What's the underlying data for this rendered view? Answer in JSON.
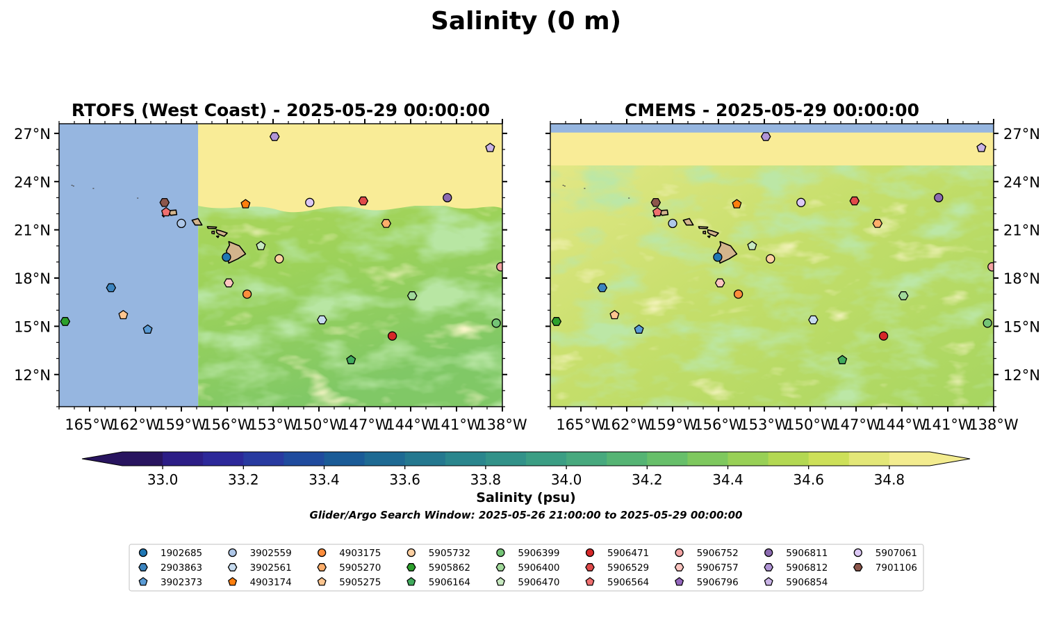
{
  "figure": {
    "title": "Salinity (0 m)",
    "search_window": "Glider/Argo Search Window: 2025-05-26 21:00:00 to 2025-05-29 00:00:00"
  },
  "colors": {
    "land_mask": "#96b6e0",
    "island_fill": "#d2b48c",
    "colorbar_stops": [
      "#28145f",
      "#2c1d86",
      "#2c2899",
      "#283aa0",
      "#1f4b9e",
      "#1a5b97",
      "#1e6a93",
      "#24788f",
      "#2a868d",
      "#329289",
      "#3b9e84",
      "#47a97e",
      "#55b474",
      "#67bf6a",
      "#7ec85e",
      "#98d056",
      "#b3d852",
      "#cde059",
      "#e3e778",
      "#f3ec8f"
    ]
  },
  "chart_data": [
    {
      "type": "heatmap",
      "panel": "left",
      "title": "RTOFS (West Coast) - 2025-05-29 00:00:00",
      "x_ticks": [
        "165°W",
        "162°W",
        "159°W",
        "156°W",
        "153°W",
        "150°W",
        "147°W",
        "144°W",
        "141°W",
        "138°W"
      ],
      "x_tick_values": [
        -165,
        -162,
        -159,
        -156,
        -153,
        -150,
        -147,
        -144,
        -141,
        -138
      ],
      "y_ticks": [
        "27°N",
        "24°N",
        "21°N",
        "18°N",
        "15°N",
        "12°N"
      ],
      "y_tick_values": [
        27,
        24,
        21,
        18,
        15,
        12
      ],
      "xlim": [
        -167,
        -138
      ],
      "ylim": [
        10,
        27.6
      ],
      "masked_west_of": -157.9,
      "field_range": [
        34.35,
        34.9
      ]
    },
    {
      "type": "heatmap",
      "panel": "right",
      "title": "CMEMS - 2025-05-29 00:00:00",
      "x_ticks": [
        "165°W",
        "162°W",
        "159°W",
        "156°W",
        "153°W",
        "150°W",
        "147°W",
        "144°W",
        "141°W",
        "138°W"
      ],
      "x_tick_values": [
        -165,
        -162,
        -159,
        -156,
        -153,
        -150,
        -147,
        -144,
        -141,
        -138
      ],
      "y_ticks": [
        "27°N",
        "24°N",
        "21°N",
        "18°N",
        "15°N",
        "12°N"
      ],
      "y_tick_values": [
        27,
        24,
        21,
        18,
        15,
        12
      ],
      "xlim": [
        -167,
        -138
      ],
      "ylim": [
        10,
        27.6
      ],
      "masked_north_of": 27.05,
      "field_range": [
        34.35,
        34.9
      ]
    }
  ],
  "colorbar": {
    "label": "Salinity (psu)",
    "min": 32.9,
    "max": 34.9,
    "step": 0.1,
    "ticks": [
      "33.0",
      "33.2",
      "33.4",
      "33.6",
      "33.8",
      "34.0",
      "34.2",
      "34.4",
      "34.6",
      "34.8"
    ],
    "tick_values": [
      33.0,
      33.2,
      33.4,
      33.6,
      33.8,
      34.0,
      34.2,
      34.4,
      34.6,
      34.8
    ]
  },
  "floats": [
    {
      "id": "1902685",
      "marker": "circle",
      "color": "#1f77b4",
      "lon": -156.05,
      "lat": 19.3
    },
    {
      "id": "2903863",
      "marker": "hexagon",
      "color": "#3b84bf",
      "lon": -163.6,
      "lat": 17.4
    },
    {
      "id": "3902373",
      "marker": "pentagon",
      "color": "#5a9bd5",
      "lon": -161.2,
      "lat": 14.8
    },
    {
      "id": "3902559",
      "marker": "circle",
      "color": "#aec7e8",
      "lon": -159.0,
      "lat": 21.4
    },
    {
      "id": "3902561",
      "marker": "hexagon",
      "color": "#c6dbef",
      "lon": -149.8,
      "lat": 15.4
    },
    {
      "id": "4903174",
      "marker": "pentagon",
      "color": "#ff7f0e",
      "lon": -154.8,
      "lat": 22.6
    },
    {
      "id": "4903175",
      "marker": "circle",
      "color": "#fd8d3c",
      "lon": -154.7,
      "lat": 17.0
    },
    {
      "id": "5905270",
      "marker": "hexagon",
      "color": "#fdae6b",
      "lon": -145.6,
      "lat": 21.4
    },
    {
      "id": "5905275",
      "marker": "pentagon",
      "color": "#fdc58f",
      "lon": -162.8,
      "lat": 15.7
    },
    {
      "id": "5905732",
      "marker": "circle",
      "color": "#fdd0a2",
      "lon": -152.6,
      "lat": 19.2
    },
    {
      "id": "5905862",
      "marker": "hexagon",
      "color": "#2ca02c",
      "lon": -166.6,
      "lat": 15.3
    },
    {
      "id": "5906164",
      "marker": "pentagon",
      "color": "#41ab5d",
      "lon": -147.9,
      "lat": 12.9
    },
    {
      "id": "5906399",
      "marker": "circle",
      "color": "#74c476",
      "lon": -138.4,
      "lat": 15.2
    },
    {
      "id": "5906400",
      "marker": "hexagon",
      "color": "#a1d99b",
      "lon": -143.9,
      "lat": 16.9
    },
    {
      "id": "5906470",
      "marker": "pentagon",
      "color": "#c7e9c0",
      "lon": -153.8,
      "lat": 20.0
    },
    {
      "id": "5906471",
      "marker": "circle",
      "color": "#d62728",
      "lon": -145.2,
      "lat": 14.4
    },
    {
      "id": "5906529",
      "marker": "hexagon",
      "color": "#e04a4a",
      "lon": -147.1,
      "lat": 22.8
    },
    {
      "id": "5906564",
      "marker": "pentagon",
      "color": "#ef6f6f",
      "lon": -160.0,
      "lat": 22.1
    },
    {
      "id": "5906752",
      "marker": "circle",
      "color": "#f4a3a3",
      "lon": -138.1,
      "lat": 18.7
    },
    {
      "id": "5906757",
      "marker": "hexagon",
      "color": "#fcc5c0",
      "lon": -155.9,
      "lat": 17.7
    },
    {
      "id": "5906796",
      "marker": "pentagon",
      "color": "#9467bd",
      "lon": -138.8,
      "lat": 26.1
    },
    {
      "id": "5906811",
      "marker": "circle",
      "color": "#8c6bb1",
      "lon": -141.6,
      "lat": 23.0
    },
    {
      "id": "5906812",
      "marker": "hexagon",
      "color": "#b195d6",
      "lon": -152.9,
      "lat": 26.8
    },
    {
      "id": "5906854",
      "marker": "pentagon",
      "color": "#c9b3e6",
      "lon": -138.8,
      "lat": 26.1
    },
    {
      "id": "5907061",
      "marker": "circle",
      "color": "#dcc8f5",
      "lon": -150.6,
      "lat": 22.7
    },
    {
      "id": "7901106",
      "marker": "hexagon",
      "color": "#8c564b",
      "lon": -160.1,
      "lat": 22.7
    }
  ]
}
